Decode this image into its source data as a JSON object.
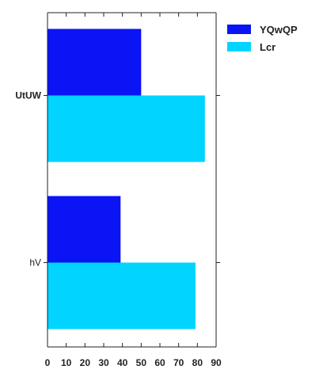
{
  "chart_data": {
    "type": "bar",
    "orientation": "horizontal",
    "categories": [
      "UtUW",
      "hV"
    ],
    "series": [
      {
        "name": "YQwQP",
        "values": [
          50,
          39
        ],
        "color": "#0a14f5"
      },
      {
        "name": "Lcr",
        "values": [
          84,
          79
        ],
        "color": "#00d4ff"
      }
    ],
    "xlim": [
      0,
      90
    ],
    "xticks": [
      0,
      10,
      20,
      30,
      40,
      50,
      60,
      70,
      80,
      90
    ],
    "title": "",
    "xlabel": "",
    "ylabel": "",
    "grid": false,
    "legend_position": "top-right, outside plot"
  }
}
